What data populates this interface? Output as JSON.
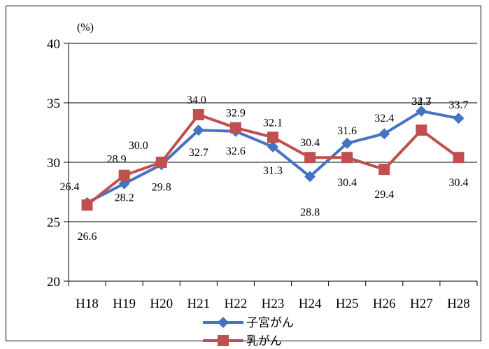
{
  "chart_data": {
    "type": "line",
    "title": "",
    "xlabel": "",
    "ylabel": "",
    "unit_label": "(%)",
    "categories": [
      "H18",
      "H19",
      "H20",
      "H21",
      "H22",
      "H23",
      "H24",
      "H25",
      "H26",
      "H27",
      "H28"
    ],
    "ylim": [
      20,
      40
    ],
    "yticks": [
      20,
      25,
      30,
      35,
      40
    ],
    "grid": true,
    "legend_position": "bottom",
    "series": [
      {
        "name": "子宮がん",
        "color": "#4472C4",
        "marker": "diamond",
        "values": [
          26.6,
          28.2,
          29.8,
          32.7,
          32.6,
          31.3,
          28.8,
          31.6,
          32.4,
          34.3,
          33.7
        ],
        "labels": [
          "26.6",
          "28.2",
          "29.8",
          "32.7",
          "32.6",
          "31.3",
          "28.8",
          "31.6",
          "32.4",
          "34.3",
          "33.7"
        ]
      },
      {
        "name": "乳がん",
        "color": "#C0504D",
        "marker": "square",
        "values": [
          26.4,
          28.9,
          30.0,
          34.0,
          32.9,
          32.1,
          30.4,
          30.4,
          29.4,
          32.7,
          30.4
        ],
        "labels": [
          "26.4",
          "28.9",
          "30.0",
          "34.0",
          "32.9",
          "32.1",
          "30.4",
          "30.4",
          "29.4",
          "32.7",
          "30.4"
        ]
      }
    ]
  }
}
